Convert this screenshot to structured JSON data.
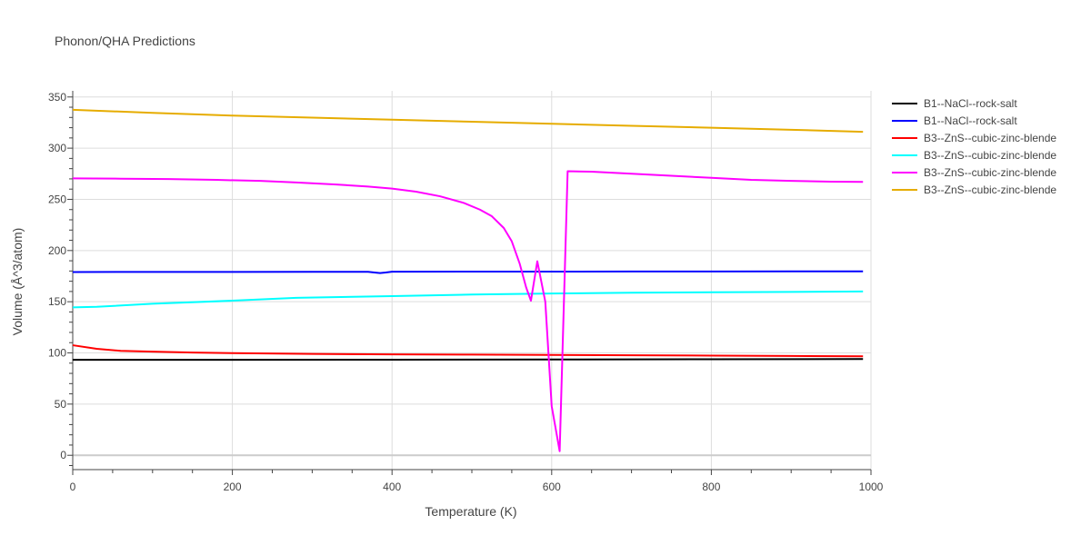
{
  "chart_data": {
    "type": "line",
    "title": "Phonon/QHA Predictions",
    "xlabel": "Temperature (K)",
    "ylabel": "Volume (Å^3/atom)",
    "xlim": [
      0,
      1000
    ],
    "ylim": [
      -14,
      356
    ],
    "xticks": [
      0,
      200,
      400,
      600,
      800,
      1000
    ],
    "yticks": [
      0,
      50,
      100,
      150,
      200,
      250,
      300,
      350
    ],
    "grid": true,
    "legend_position": "top-right",
    "series": [
      {
        "name": "B1--NaCl--rock-salt",
        "color": "#000000",
        "x": [
          0,
          200,
          400,
          600,
          800,
          990
        ],
        "y": [
          93.2,
          93.3,
          93.4,
          93.6,
          93.8,
          94.0
        ]
      },
      {
        "name": "B1--NaCl--rock-salt",
        "color": "#0000ff",
        "x": [
          0,
          100,
          200,
          300,
          370,
          378,
          385,
          392,
          400,
          500,
          600,
          700,
          800,
          900,
          990
        ],
        "y": [
          179.0,
          179.1,
          179.1,
          179.2,
          179.2,
          178.5,
          178.0,
          178.5,
          179.3,
          179.4,
          179.4,
          179.5,
          179.5,
          179.6,
          179.6
        ]
      },
      {
        "name": "B3--ZnS--cubic-zinc-blende",
        "color": "#ff0000",
        "x": [
          0,
          30,
          60,
          100,
          150,
          200,
          300,
          400,
          500,
          600,
          700,
          800,
          900,
          990
        ],
        "y": [
          107.5,
          104.0,
          102.0,
          101.2,
          100.3,
          99.8,
          99.0,
          98.6,
          98.3,
          98.0,
          97.7,
          97.4,
          97.0,
          96.7
        ]
      },
      {
        "name": "B3--ZnS--cubic-zinc-blende",
        "color": "#00ffff",
        "x": [
          0,
          30,
          100,
          200,
          280,
          400,
          500,
          600,
          700,
          800,
          900,
          990
        ],
        "y": [
          144.5,
          145.0,
          148.0,
          151.0,
          153.8,
          155.5,
          157.0,
          158.0,
          158.8,
          159.2,
          159.6,
          160.0
        ]
      },
      {
        "name": "B3--ZnS--cubic-zinc-blende",
        "color": "#ff00ff",
        "x": [
          0,
          60,
          120,
          180,
          235,
          280,
          330,
          370,
          400,
          430,
          460,
          490,
          510,
          525,
          540,
          550,
          560,
          568,
          574,
          582,
          592,
          600,
          610,
          620,
          650,
          700,
          750,
          800,
          850,
          900,
          950,
          990
        ],
        "y": [
          270.5,
          270.2,
          269.8,
          269.0,
          268.0,
          266.5,
          264.5,
          262.5,
          260.5,
          257.5,
          253.0,
          246.5,
          240.0,
          233.5,
          222.0,
          209.0,
          187.0,
          164.0,
          151.0,
          189.5,
          150.0,
          48.0,
          4.0,
          277.5,
          277.0,
          275.0,
          273.0,
          271.0,
          269.0,
          268.0,
          267.3,
          267.0
        ]
      },
      {
        "name": "B3--ZnS--cubic-zinc-blende",
        "color": "#e6ac00",
        "x": [
          0,
          100,
          200,
          300,
          400,
          500,
          600,
          700,
          800,
          900,
          990
        ],
        "y": [
          337.5,
          334.5,
          331.8,
          329.8,
          327.8,
          325.8,
          323.8,
          321.8,
          320.0,
          318.0,
          316.0
        ]
      }
    ]
  }
}
